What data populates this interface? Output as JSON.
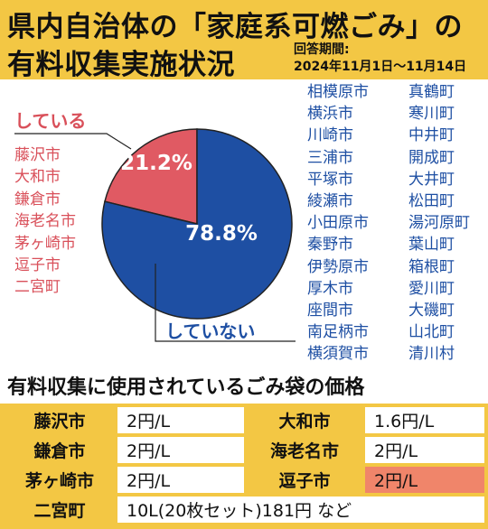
{
  "header": {
    "title_line1": "県内自治体の「家庭系可燃ごみ」の",
    "title_line2": "有料収集実施状況",
    "period_label": "回答期間:",
    "period_range": "2024年11月1日〜11月14日"
  },
  "chart_data": {
    "type": "pie",
    "slices": [
      {
        "label": "している",
        "value": 21.2,
        "display": "21.2%",
        "color": "#e05a63"
      },
      {
        "label": "していない",
        "value": 78.8,
        "display": "78.8%",
        "color": "#1e4fa3"
      }
    ],
    "annotations": {
      "yes": {
        "label": "している",
        "municipalities": [
          "藤沢市",
          "大和市",
          "鎌倉市",
          "海老名市",
          "茅ヶ崎市",
          "逗子市",
          "二宮町"
        ]
      },
      "no": {
        "label": "していない",
        "municipalities_col1": [
          "相模原市",
          "横浜市",
          "川崎市",
          "三浦市",
          "平塚市",
          "綾瀬市",
          "小田原市",
          "秦野市",
          "伊勢原市",
          "厚木市",
          "座間市",
          "南足柄市",
          "横須賀市"
        ],
        "municipalities_col2": [
          "真鶴町",
          "寒川町",
          "中井町",
          "開成町",
          "大井町",
          "松田町",
          "湯河原町",
          "葉山町",
          "箱根町",
          "愛川町",
          "大磯町",
          "山北町",
          "清川村"
        ]
      }
    }
  },
  "prices": {
    "title": "有料収集に使用されているごみ袋の価格",
    "rows": [
      {
        "city": "藤沢市",
        "price": "2円/L",
        "city2": "大和市",
        "price2": "1.6円/L"
      },
      {
        "city": "鎌倉市",
        "price": "2円/L",
        "city2": "海老名市",
        "price2": "2円/L"
      },
      {
        "city": "茅ヶ崎市",
        "price": "2円/L",
        "city2": "逗子市",
        "price2": "2円/L"
      }
    ],
    "last_row": {
      "city": "二宮町",
      "price": "10L(20枚セット)181円 など"
    },
    "highlight_color": "#f0856a"
  },
  "colors": {
    "header_bg": "#f3c744",
    "yes": "#e05a63",
    "no": "#1e4fa3"
  }
}
